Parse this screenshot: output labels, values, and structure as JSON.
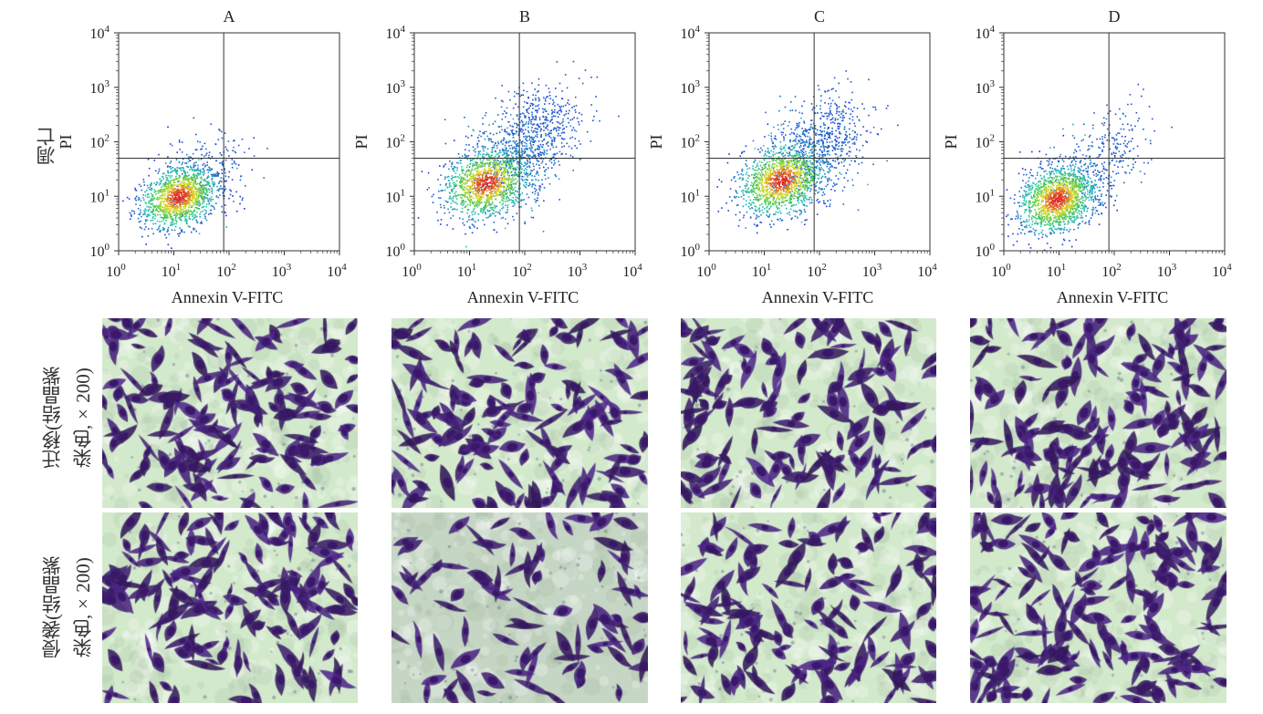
{
  "figure": {
    "panels": [
      {
        "letter": "A"
      },
      {
        "letter": "B"
      },
      {
        "letter": "C"
      },
      {
        "letter": "D"
      }
    ],
    "row_labels": {
      "apoptosis": "凋亡",
      "migration_line1": "迁移(结晶紫",
      "migration_line2": "染色,×200)",
      "invasion_line1": "侵袭(结晶紫",
      "invasion_line2": "染色,×200)"
    },
    "colors": {
      "background": "#ffffff",
      "stain_background": "#d3e9cc",
      "cell_stain": "#5b2e93",
      "cell_stain_dark": "#3a1869",
      "density_low": "#1e2bd6",
      "density_mid": "#27c4b8",
      "density_high": "#e0e02a",
      "density_peak": "#e02020"
    }
  },
  "chart_data": [
    {
      "type": "scatter",
      "title": "A",
      "xlabel": "Annexin V-FITC",
      "ylabel": "PI",
      "x_scale": "log",
      "y_scale": "log",
      "xlim": [
        1,
        10000
      ],
      "ylim": [
        1,
        10000
      ],
      "x_ticks": [
        "10",
        "10",
        "10",
        "10",
        "10"
      ],
      "x_tick_exponents": [
        "0",
        "1",
        "2",
        "3",
        "4"
      ],
      "y_ticks": [
        "10",
        "10",
        "10",
        "10",
        "10"
      ],
      "y_tick_exponents": [
        "0",
        "1",
        "2",
        "3",
        "4"
      ],
      "quadrant_gate": {
        "x": 80,
        "y": 50
      },
      "population": {
        "center": [
          12,
          10
        ],
        "spread_decades": [
          0.35,
          0.28
        ],
        "tail_to": [
          90,
          60
        ],
        "tail_fraction": 0.15,
        "points": 1600
      }
    },
    {
      "type": "scatter",
      "title": "B",
      "xlabel": "Annexin V-FITC",
      "ylabel": "PI",
      "x_scale": "log",
      "y_scale": "log",
      "xlim": [
        1,
        10000
      ],
      "ylim": [
        1,
        10000
      ],
      "x_ticks": [
        "10",
        "10",
        "10",
        "10",
        "10"
      ],
      "x_tick_exponents": [
        "0",
        "1",
        "2",
        "3",
        "4"
      ],
      "y_ticks": [
        "10",
        "10",
        "10",
        "10",
        "10"
      ],
      "y_tick_exponents": [
        "0",
        "1",
        "2",
        "3",
        "4"
      ],
      "quadrant_gate": {
        "x": 80,
        "y": 50
      },
      "population": {
        "center": [
          20,
          18
        ],
        "spread_decades": [
          0.4,
          0.32
        ],
        "tail_to": [
          400,
          400
        ],
        "tail_fraction": 0.45,
        "points": 2200
      }
    },
    {
      "type": "scatter",
      "title": "C",
      "xlabel": "Annexin V-FITC",
      "ylabel": "PI",
      "x_scale": "log",
      "y_scale": "log",
      "xlim": [
        1,
        10000
      ],
      "ylim": [
        1,
        10000
      ],
      "x_ticks": [
        "10",
        "10",
        "10",
        "10",
        "10"
      ],
      "x_tick_exponents": [
        "0",
        "1",
        "2",
        "3",
        "4"
      ],
      "y_ticks": [
        "10",
        "10",
        "10",
        "10",
        "10"
      ],
      "y_tick_exponents": [
        "0",
        "1",
        "2",
        "3",
        "4"
      ],
      "quadrant_gate": {
        "x": 80,
        "y": 50
      },
      "population": {
        "center": [
          20,
          20
        ],
        "spread_decades": [
          0.4,
          0.32
        ],
        "tail_to": [
          300,
          300
        ],
        "tail_fraction": 0.38,
        "points": 2100
      }
    },
    {
      "type": "scatter",
      "title": "D",
      "xlabel": "Annexin V-FITC",
      "ylabel": "PI",
      "x_scale": "log",
      "y_scale": "log",
      "xlim": [
        1,
        10000
      ],
      "ylim": [
        1,
        10000
      ],
      "x_ticks": [
        "10",
        "10",
        "10",
        "10",
        "10"
      ],
      "x_tick_exponents": [
        "0",
        "1",
        "2",
        "3",
        "4"
      ],
      "y_ticks": [
        "10",
        "10",
        "10",
        "10",
        "10"
      ],
      "y_tick_exponents": [
        "0",
        "1",
        "2",
        "3",
        "4"
      ],
      "quadrant_gate": {
        "x": 80,
        "y": 50
      },
      "population": {
        "center": [
          9,
          9
        ],
        "spread_decades": [
          0.35,
          0.3
        ],
        "tail_to": [
          200,
          150
        ],
        "tail_fraction": 0.22,
        "points": 1800
      }
    }
  ]
}
